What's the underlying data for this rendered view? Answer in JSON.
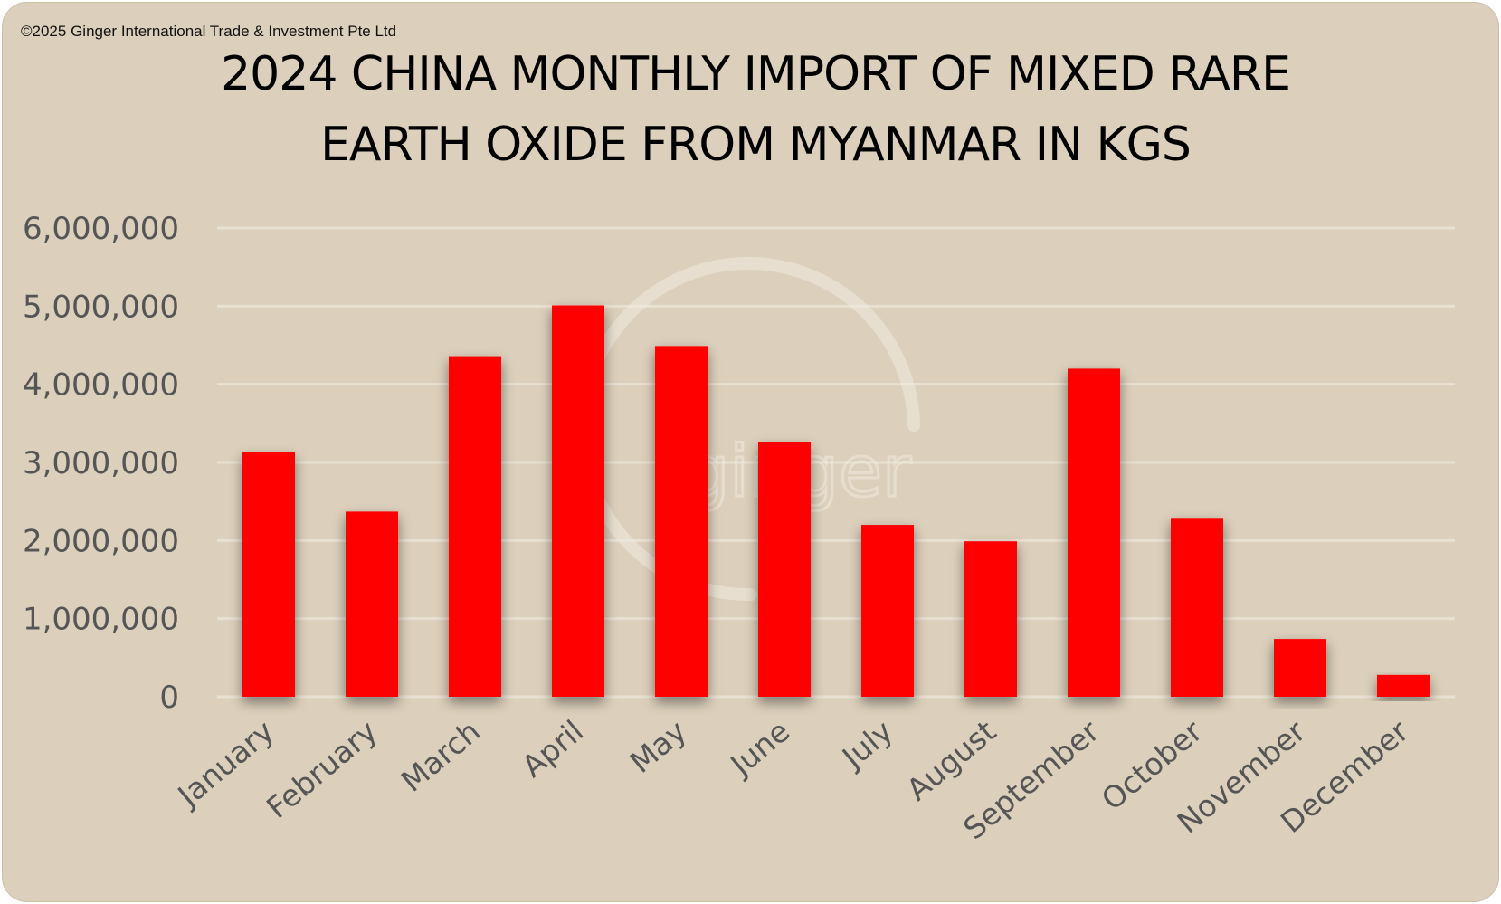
{
  "copyright": "©2025 Ginger International Trade & Investment Pte Ltd",
  "watermark": "ginger",
  "chart_data": {
    "type": "bar",
    "title_lines": [
      "2024 CHINA MONTHLY IMPORT OF MIXED RARE",
      "EARTH OXIDE FROM MYANMAR IN KGS"
    ],
    "categories": [
      "January",
      "February",
      "March",
      "April",
      "May",
      "June",
      "July",
      "August",
      "September",
      "October",
      "November",
      "December"
    ],
    "values": [
      3130000,
      2370000,
      4360000,
      5010000,
      4490000,
      3260000,
      2200000,
      1990000,
      4200000,
      2290000,
      740000,
      280000
    ],
    "ylim": [
      0,
      6000000
    ],
    "yticks": [
      0,
      1000000,
      2000000,
      3000000,
      4000000,
      5000000,
      6000000
    ],
    "ytick_labels": [
      "0",
      "1,000,000",
      "2,000,000",
      "3,000,000",
      "4,000,000",
      "5,000,000",
      "6,000,000"
    ],
    "grid": true,
    "legend": "none",
    "colors": {
      "bar": "#ff0000",
      "grid": "#e8e0d2",
      "background": "#dccfbb",
      "tick_text": "#555555"
    }
  }
}
